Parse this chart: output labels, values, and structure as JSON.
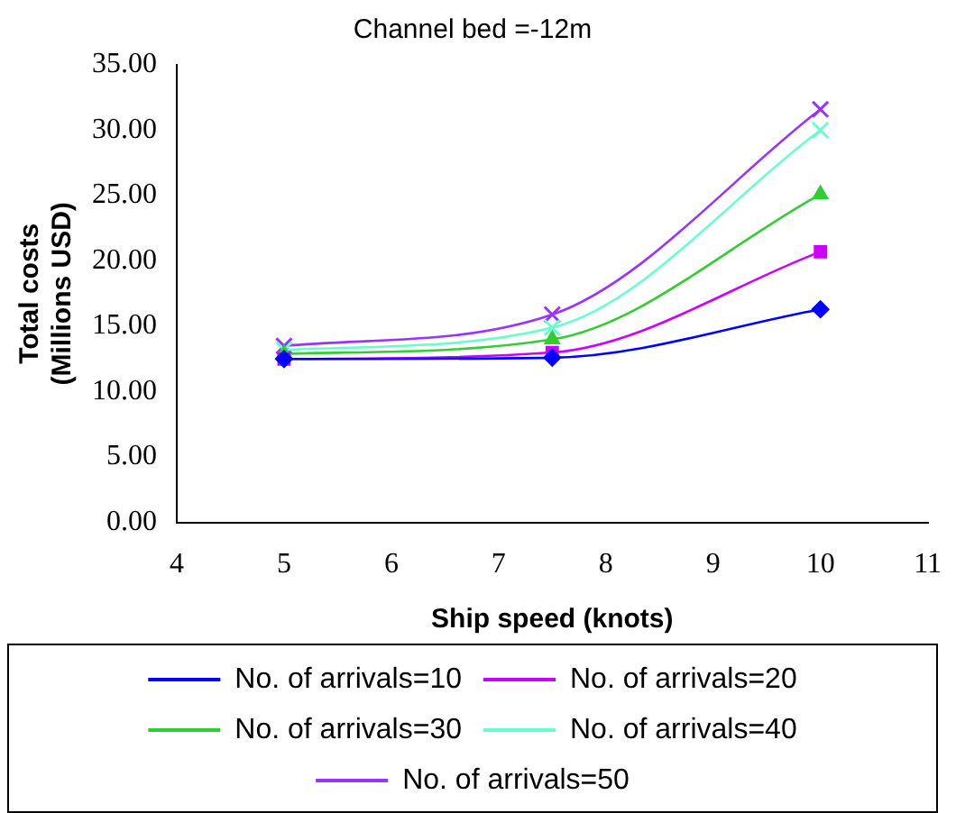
{
  "chart_data": {
    "type": "line",
    "title": "Channel bed =-12m",
    "xlabel": "Ship speed (knots)",
    "ylabel": "Total costs\n(Millions USD)",
    "x": [
      5,
      7.5,
      10
    ],
    "series": [
      {
        "name": "No. of arrivals=10",
        "color": "#0000ff",
        "marker": "diamond",
        "values": [
          12.5,
          12.6,
          16.3
        ]
      },
      {
        "name": "No. of arrivals=20",
        "color": "#cc00ff",
        "marker": "square",
        "values": [
          12.5,
          13.0,
          20.7
        ]
      },
      {
        "name": "No. of arrivals=30",
        "color": "#33cc33",
        "marker": "triangle",
        "values": [
          12.9,
          14.0,
          25.1
        ]
      },
      {
        "name": "No. of arrivals=40",
        "color": "#66ffcc",
        "marker": "cross",
        "values": [
          13.2,
          14.9,
          30.0
        ]
      },
      {
        "name": "No. of arrivals=50",
        "color": "#9933ff",
        "marker": "cross",
        "values": [
          13.5,
          15.9,
          31.6
        ]
      }
    ],
    "xlim": [
      4,
      11
    ],
    "xticks": [
      4,
      5,
      6,
      7,
      8,
      9,
      10,
      11
    ],
    "ylim": [
      0,
      35
    ],
    "yticks": [
      {
        "value": 0,
        "label": "0.00"
      },
      {
        "value": 5,
        "label": "5.00"
      },
      {
        "value": 10,
        "label": "10.00"
      },
      {
        "value": 15,
        "label": "15.00"
      },
      {
        "value": 20,
        "label": "20.00"
      },
      {
        "value": 25,
        "label": "25.00"
      },
      {
        "value": 30,
        "label": "30.00"
      },
      {
        "value": 35,
        "label": "35.00"
      }
    ],
    "grid": false,
    "legend": "bottom",
    "line_style": "solid"
  }
}
